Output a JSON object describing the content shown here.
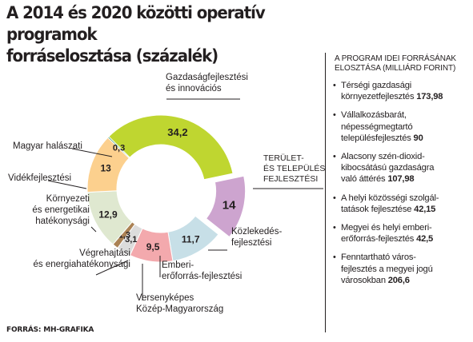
{
  "title_lines": [
    "A 2014 és 2020 közötti operatív programok",
    "forráselosztása (százalék)"
  ],
  "source": "FORRÁS: MH-GRAFIKA",
  "chart_data": {
    "type": "pie",
    "donut": true,
    "slices": [
      {
        "label": "Gazdaságfejlesztési\nés innovációs",
        "value": 34.2,
        "display": "34,2",
        "color": "#bfd630"
      },
      {
        "label": "Terület-\nés település-\nfejlesztési",
        "value": 14,
        "display": "14",
        "color": "#cda4cf"
      },
      {
        "label": "Közlekedés-\nfejlesztési",
        "value": 11.7,
        "display": "11,7",
        "color": "#c7dfe7"
      },
      {
        "label": "Emberi-\nerőforrás-fejlesztési",
        "value": 9.5,
        "display": "9,5",
        "color": "#f3a9ad"
      },
      {
        "label": "Versenyképes\nKözép-Magyarország",
        "value": 3.1,
        "display": "3,1",
        "color": "#dcdcdc"
      },
      {
        "label": "Végrehajtási\nés energiahatékonysági",
        "value": 1.3,
        "display": "1,3",
        "color": "#ab8254"
      },
      {
        "label": "Környezeti\nés energetikai\nhatékonysági",
        "value": 12.9,
        "display": "12,9",
        "color": "#dfe8d0"
      },
      {
        "label": "Vidékfejlesztési",
        "value": 13,
        "display": "13",
        "color": "#fcd08e"
      },
      {
        "label": "Magyar halászati",
        "value": 0.3,
        "display": "0,3",
        "color": "#3c9a79"
      }
    ],
    "start_angle_deg": -135
  },
  "sidebar": {
    "title": "A program idei forrásának elosztása (milliárd forint)",
    "items": [
      {
        "label": "Térségi gazdasági\nkörnyezetfejlesztés",
        "value": "173,98"
      },
      {
        "label": "Vállalkozásbarát,\nnépességmegtartó\ntelepülésfejlesztés",
        "value": "90"
      },
      {
        "label": "Alacsony szén-dioxid-\nkibocsátású gazdaságra\nvaló áttérés",
        "value": "107,98"
      },
      {
        "label": "A helyi közösségi szolgál-\ntatások fejlesztése",
        "value": "42,15"
      },
      {
        "label": "Megyei és helyi emberi-\nerőforrás-fejlesztés",
        "value": "42,5"
      },
      {
        "label": "Fenntartható város-\nfejlesztés a megyei jogú\nvárosokban",
        "value": "206,6"
      }
    ]
  }
}
